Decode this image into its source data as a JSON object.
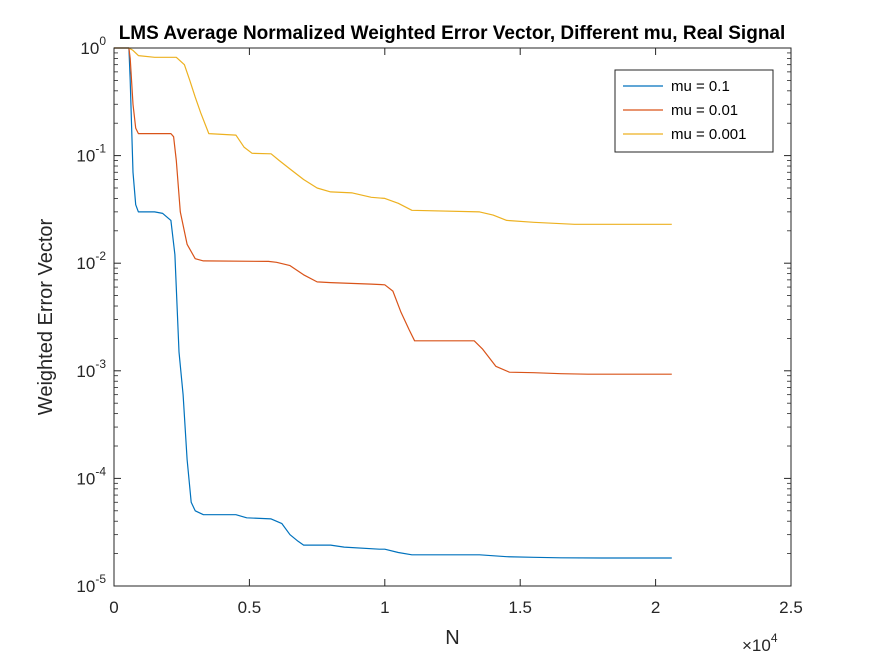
{
  "chart_data": {
    "type": "line",
    "title": "LMS Average Normalized Weighted Error Vector, Different mu, Real Signal",
    "xlabel": "N",
    "ylabel": "Weighted Error Vector",
    "xscale": "linear",
    "yscale": "log",
    "xlim": [
      0,
      25000
    ],
    "ylim": [
      1e-05,
      1
    ],
    "x_ticks": [
      0,
      5000,
      10000,
      15000,
      20000,
      25000
    ],
    "x_tick_labels": [
      "0",
      "0.5",
      "1",
      "1.5",
      "2",
      "2.5"
    ],
    "x_multiplier": "×10",
    "x_multiplier_exp": "4",
    "y_ticks": [
      {
        "value": 1e-05,
        "base": "10",
        "exp": "-5"
      },
      {
        "value": 0.0001,
        "base": "10",
        "exp": "-4"
      },
      {
        "value": 0.001,
        "base": "10",
        "exp": "-3"
      },
      {
        "value": 0.01,
        "base": "10",
        "exp": "-2"
      },
      {
        "value": 0.1,
        "base": "10",
        "exp": "-1"
      },
      {
        "value": 1,
        "base": "10",
        "exp": "0"
      }
    ],
    "grid": false,
    "legend_position": "top-right",
    "series": [
      {
        "name": "mu = 0.1",
        "color": "#0072BD",
        "points": [
          [
            0,
            1
          ],
          [
            550,
            1
          ],
          [
            600,
            0.5
          ],
          [
            700,
            0.07
          ],
          [
            800,
            0.035
          ],
          [
            900,
            0.03
          ],
          [
            1500,
            0.03
          ],
          [
            1800,
            0.029
          ],
          [
            2100,
            0.025
          ],
          [
            2250,
            0.012
          ],
          [
            2400,
            0.0015
          ],
          [
            2550,
            0.0006
          ],
          [
            2700,
            0.00015
          ],
          [
            2850,
            6e-05
          ],
          [
            3000,
            5e-05
          ],
          [
            3300,
            4.6e-05
          ],
          [
            4500,
            4.6e-05
          ],
          [
            4900,
            4.3e-05
          ],
          [
            5800,
            4.2e-05
          ],
          [
            6200,
            3.8e-05
          ],
          [
            6500,
            3e-05
          ],
          [
            6800,
            2.6e-05
          ],
          [
            7000,
            2.4e-05
          ],
          [
            8000,
            2.4e-05
          ],
          [
            8500,
            2.3e-05
          ],
          [
            9800,
            2.2e-05
          ],
          [
            10000,
            2.2e-05
          ],
          [
            10500,
            2.05e-05
          ],
          [
            11000,
            1.95e-05
          ],
          [
            12000,
            1.95e-05
          ],
          [
            13500,
            1.95e-05
          ],
          [
            14500,
            1.87e-05
          ],
          [
            15500,
            1.85e-05
          ],
          [
            16500,
            1.83e-05
          ],
          [
            18000,
            1.82e-05
          ],
          [
            20600,
            1.82e-05
          ]
        ]
      },
      {
        "name": "mu = 0.01",
        "color": "#D95319",
        "points": [
          [
            0,
            1
          ],
          [
            550,
            1
          ],
          [
            600,
            0.8
          ],
          [
            700,
            0.3
          ],
          [
            800,
            0.18
          ],
          [
            900,
            0.16
          ],
          [
            2100,
            0.16
          ],
          [
            2200,
            0.15
          ],
          [
            2300,
            0.09
          ],
          [
            2450,
            0.03
          ],
          [
            2700,
            0.015
          ],
          [
            3000,
            0.011
          ],
          [
            3300,
            0.0105
          ],
          [
            5700,
            0.0104
          ],
          [
            6000,
            0.0102
          ],
          [
            6500,
            0.0095
          ],
          [
            7000,
            0.0078
          ],
          [
            7500,
            0.0067
          ],
          [
            8000,
            0.0066
          ],
          [
            9500,
            0.0064
          ],
          [
            10000,
            0.0063
          ],
          [
            10300,
            0.0055
          ],
          [
            10600,
            0.0035
          ],
          [
            10900,
            0.0024
          ],
          [
            11100,
            0.0019
          ],
          [
            13300,
            0.0019
          ],
          [
            13600,
            0.0016
          ],
          [
            14100,
            0.0011
          ],
          [
            14600,
            0.00097
          ],
          [
            15500,
            0.00096
          ],
          [
            16500,
            0.00094
          ],
          [
            17500,
            0.00093
          ],
          [
            20600,
            0.00093
          ]
        ]
      },
      {
        "name": "mu = 0.001",
        "color": "#EDB120",
        "points": [
          [
            0,
            1
          ],
          [
            550,
            1
          ],
          [
            700,
            0.95
          ],
          [
            900,
            0.85
          ],
          [
            1500,
            0.82
          ],
          [
            2300,
            0.82
          ],
          [
            2600,
            0.7
          ],
          [
            2800,
            0.5
          ],
          [
            3000,
            0.35
          ],
          [
            3200,
            0.25
          ],
          [
            3500,
            0.16
          ],
          [
            4500,
            0.155
          ],
          [
            4800,
            0.12
          ],
          [
            5100,
            0.105
          ],
          [
            5800,
            0.104
          ],
          [
            6100,
            0.09
          ],
          [
            6500,
            0.075
          ],
          [
            7000,
            0.06
          ],
          [
            7500,
            0.05
          ],
          [
            8000,
            0.046
          ],
          [
            8800,
            0.045
          ],
          [
            9500,
            0.041
          ],
          [
            10000,
            0.04
          ],
          [
            10500,
            0.036
          ],
          [
            11000,
            0.031
          ],
          [
            13500,
            0.03
          ],
          [
            14000,
            0.028
          ],
          [
            14500,
            0.025
          ],
          [
            15500,
            0.024
          ],
          [
            17000,
            0.023
          ],
          [
            20600,
            0.023
          ]
        ]
      }
    ]
  }
}
